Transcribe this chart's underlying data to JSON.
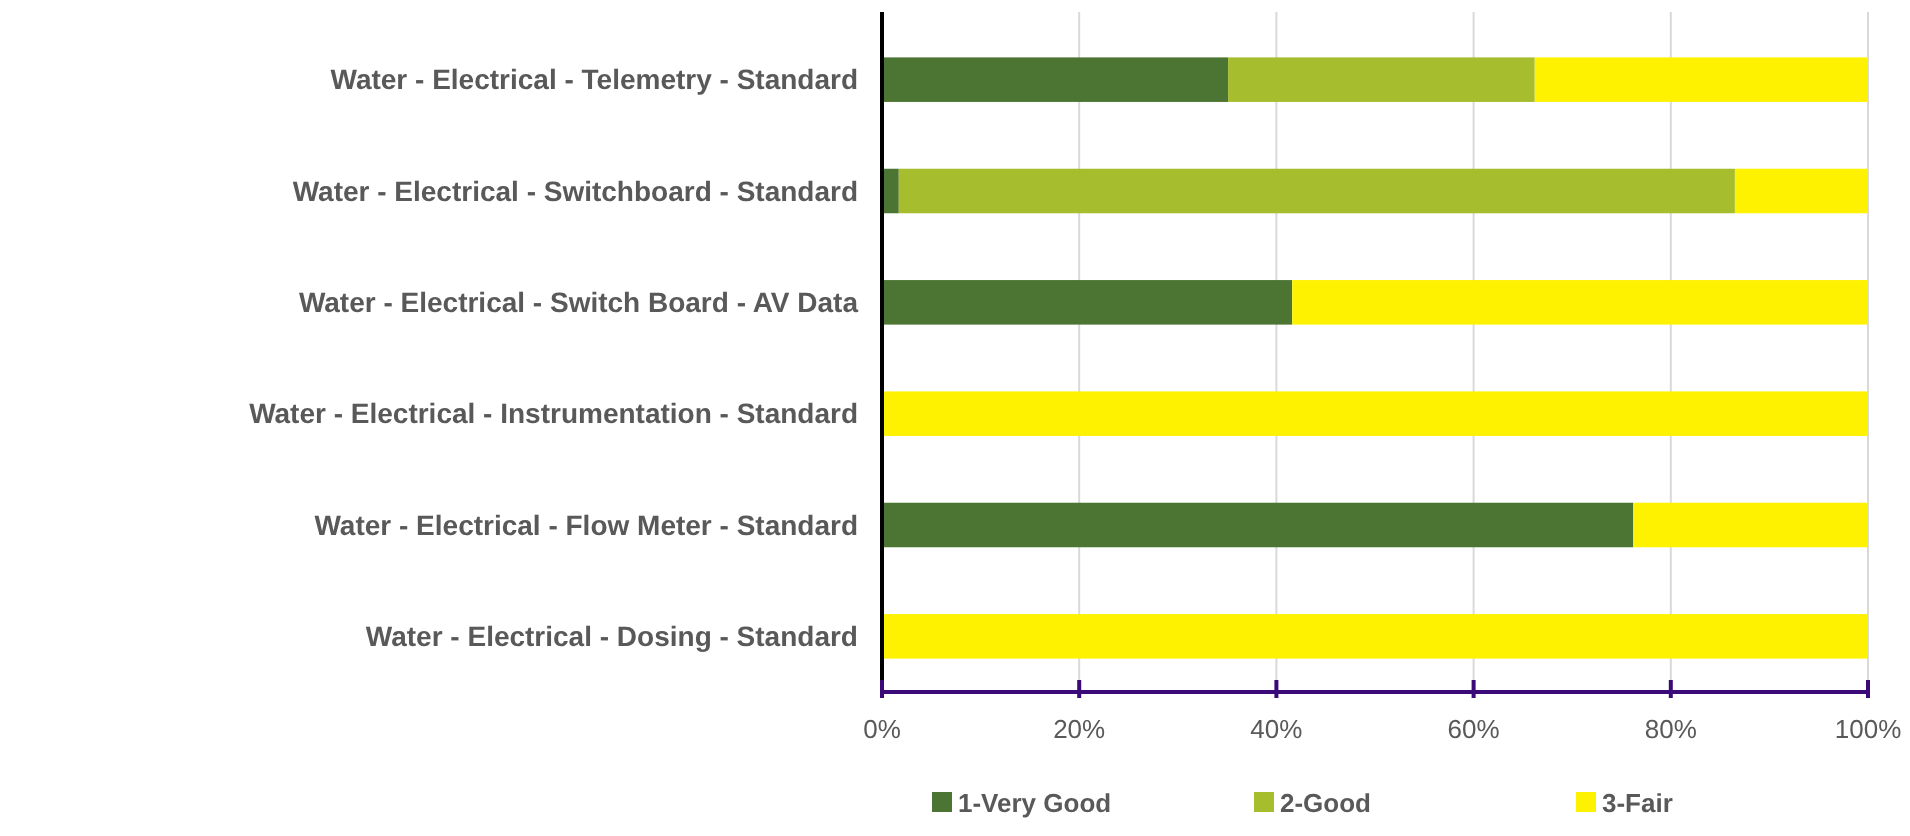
{
  "chart_data": {
    "type": "bar",
    "orientation": "horizontal",
    "stacked": true,
    "categories": [
      "Water - Electrical - Telemetry - Standard",
      "Water - Electrical - Switchboard - Standard",
      "Water - Electrical - Switch Board - AV Data",
      "Water - Electrical - Instrumentation - Standard",
      "Water - Electrical - Flow Meter - Standard",
      "Water - Electrical - Dosing - Standard"
    ],
    "series": [
      {
        "name": "1-Very Good",
        "color": "#4c7432",
        "values": [
          35.1,
          1.7,
          41.6,
          0,
          76.2,
          0
        ]
      },
      {
        "name": "2-Good",
        "color": "#a6bd2d",
        "values": [
          31.1,
          84.8,
          0,
          0,
          0,
          0
        ]
      },
      {
        "name": "3-Fair",
        "color": "#fff200",
        "values": [
          33.8,
          13.5,
          58.4,
          100,
          23.8,
          100
        ]
      }
    ],
    "xlim": [
      0,
      100
    ],
    "xticks": [
      {
        "value": 0,
        "label": "0%"
      },
      {
        "value": 20,
        "label": "20%"
      },
      {
        "value": 40,
        "label": "40%"
      },
      {
        "value": 60,
        "label": "60%"
      },
      {
        "value": 80,
        "label": "80%"
      },
      {
        "value": 100,
        "label": "100%"
      }
    ],
    "grid": "x",
    "legend": "bottom"
  }
}
